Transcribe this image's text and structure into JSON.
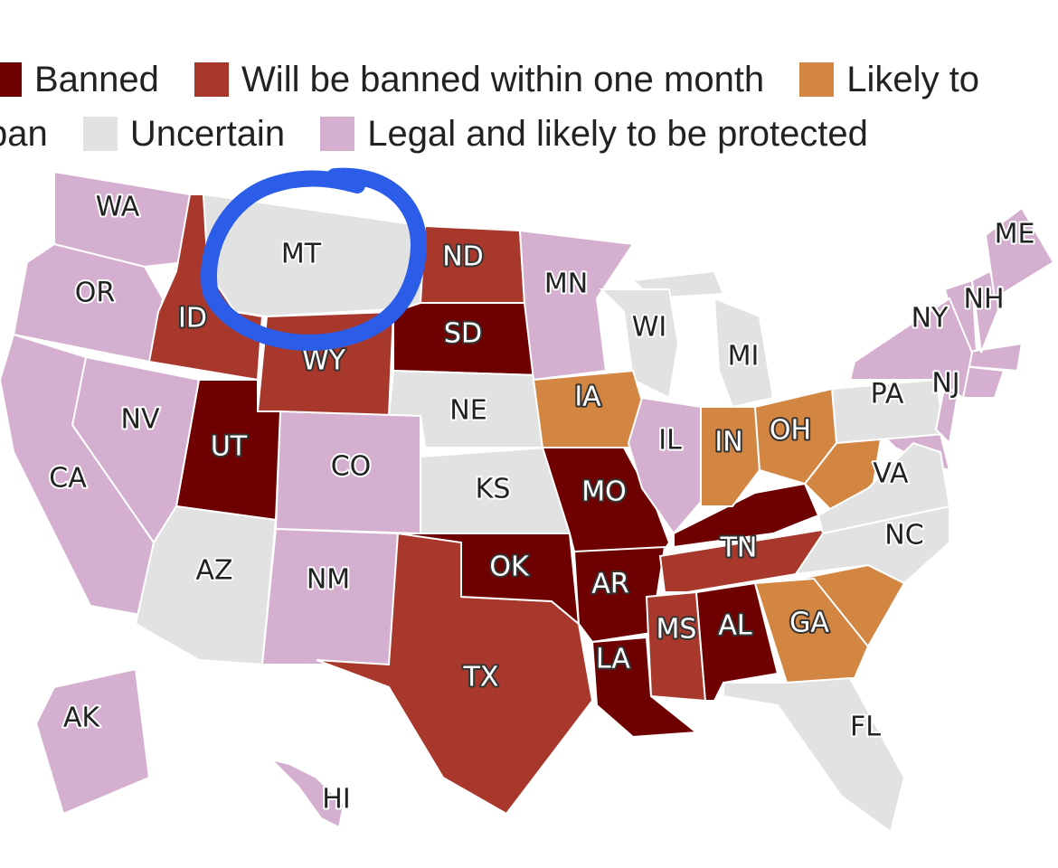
{
  "legend": [
    {
      "label": "Banned",
      "color": "#6e0000"
    },
    {
      "label": "Will be banned within one month",
      "color": "#a8382c"
    },
    {
      "label": "Likely to ban",
      "color": "#d38542"
    },
    {
      "label": "Uncertain",
      "color": "#e2e2e2"
    },
    {
      "label": "Legal and likely to be protected",
      "color": "#d4afcf"
    }
  ],
  "states": [
    {
      "label": "WA",
      "color": "#d4afcf"
    },
    {
      "label": "OR",
      "color": "#d4afcf"
    },
    {
      "label": "ID",
      "color": "#a8382c"
    },
    {
      "label": "MT",
      "color": "#e2e2e2"
    },
    {
      "label": "ND",
      "color": "#a8382c"
    },
    {
      "label": "SD",
      "color": "#6e0000"
    },
    {
      "label": "WY",
      "color": "#a8382c"
    },
    {
      "label": "NE",
      "color": "#e2e2e2"
    },
    {
      "label": "KS",
      "color": "#e2e2e2"
    },
    {
      "label": "CO",
      "color": "#d4afcf"
    },
    {
      "label": "UT",
      "color": "#6e0000"
    },
    {
      "label": "NV",
      "color": "#d4afcf"
    },
    {
      "label": "CA",
      "color": "#d4afcf"
    },
    {
      "label": "AZ",
      "color": "#e2e2e2"
    },
    {
      "label": "NM",
      "color": "#d4afcf"
    },
    {
      "label": "TX",
      "color": "#a8382c"
    },
    {
      "label": "OK",
      "color": "#6e0000"
    },
    {
      "label": "MO",
      "color": "#6e0000"
    },
    {
      "label": "AR",
      "color": "#6e0000"
    },
    {
      "label": "LA",
      "color": "#6e0000"
    },
    {
      "label": "MS",
      "color": "#a8382c"
    },
    {
      "label": "AL",
      "color": "#6e0000"
    },
    {
      "label": "TN",
      "color": "#a8382c"
    },
    {
      "label": "GA",
      "color": "#d38542"
    },
    {
      "label": "FL",
      "color": "#e2e2e2"
    },
    {
      "label": "NC",
      "color": "#e2e2e2"
    },
    {
      "label": "VA",
      "color": "#e2e2e2"
    },
    {
      "label": "PA",
      "color": "#e2e2e2"
    },
    {
      "label": "NJ",
      "color": "#d4afcf"
    },
    {
      "label": "NY",
      "color": "#d4afcf"
    },
    {
      "label": "NH",
      "color": "#d4afcf"
    },
    {
      "label": "ME",
      "color": "#d4afcf"
    },
    {
      "label": "MN",
      "color": "#d4afcf"
    },
    {
      "label": "WI",
      "color": "#e2e2e2"
    },
    {
      "label": "MI",
      "color": "#e2e2e2"
    },
    {
      "label": "IA",
      "color": "#d38542"
    },
    {
      "label": "IL",
      "color": "#d4afcf"
    },
    {
      "label": "IN",
      "color": "#d38542"
    },
    {
      "label": "OH",
      "color": "#d38542"
    },
    {
      "label": "AK",
      "color": "#d4afcf"
    },
    {
      "label": "HI",
      "color": "#d4afcf"
    }
  ]
}
